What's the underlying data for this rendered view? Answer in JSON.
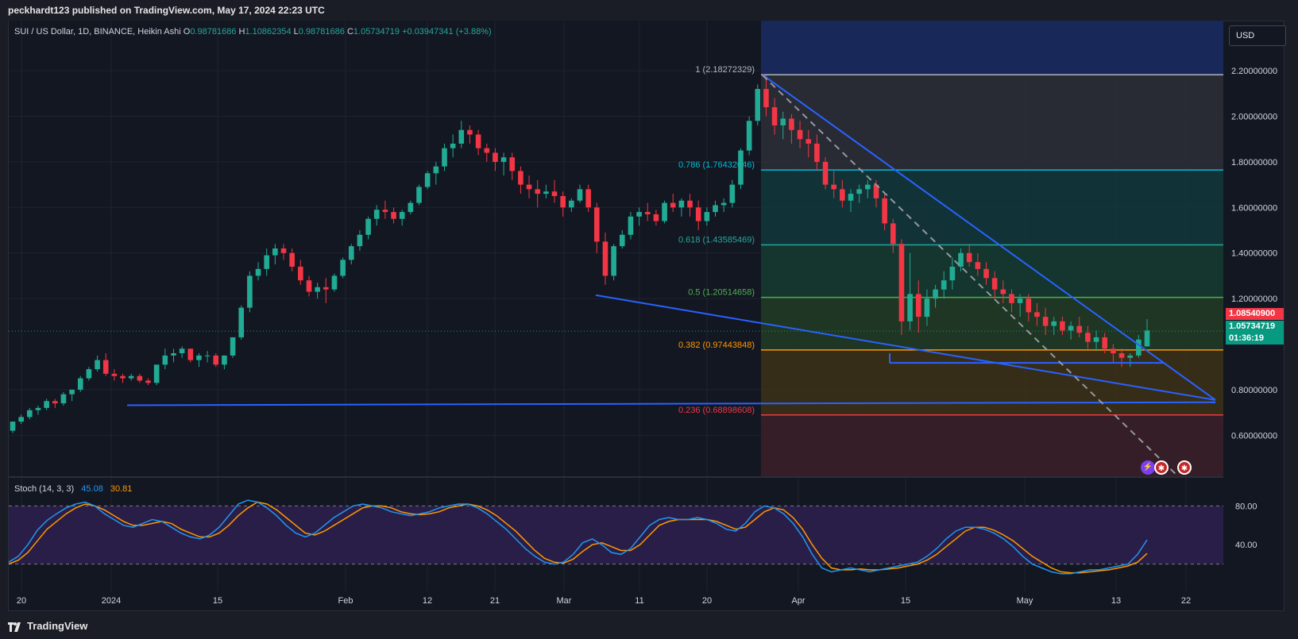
{
  "header": {
    "published_text": "peckhardt123 published on TradingView.com, May 17, 2024 22:23 UTC"
  },
  "legend": {
    "symbol": "SUI / US Dollar, 1D, BINANCE, Heikin Ashi",
    "o_label": "O",
    "o": "0.98781686",
    "h_label": "H",
    "h": "1.10862354",
    "l_label": "L",
    "l": "0.98781686",
    "c_label": "C",
    "c": "1.05734719",
    "change": "+0.03947341 (+3.88%)"
  },
  "currency_button": "USD",
  "price_tags": {
    "red": "1.08540900",
    "green": "1.05734719",
    "countdown": "01:36:19"
  },
  "stoch": {
    "label": "Stoch (14, 3, 3)",
    "k": "45.08",
    "d": "30.81"
  },
  "footer": {
    "brand": "TradingView"
  },
  "colors": {
    "up": "#22ab94",
    "down": "#f23645",
    "background": "#131722",
    "trendline": "#2962ff",
    "stoch_k": "#2196f3",
    "stoch_d": "#ff9800"
  },
  "chart_data": {
    "type": "candlestick",
    "candle_style": "Heikin Ashi",
    "x_ticks": [
      "20",
      "2024",
      "15",
      "Feb",
      "12",
      "21",
      "Mar",
      "11",
      "20",
      "Apr",
      "15",
      "May",
      "13",
      "22"
    ],
    "y_ticks": [
      "2.20000000",
      "2.00000000",
      "1.80000000",
      "1.60000000",
      "1.40000000",
      "1.20000000",
      "0.80000000",
      "0.60000000"
    ],
    "ylim": [
      0.42,
      2.42
    ],
    "fib_levels": [
      {
        "ratio": "1",
        "label": "1 (2.18272329)",
        "price": 2.18272329,
        "color": "#b2b5be"
      },
      {
        "ratio": "0.786",
        "label": "0.786 (1.76432046)",
        "price": 1.76432046,
        "color": "#00bcd4"
      },
      {
        "ratio": "0.618",
        "label": "0.618 (1.43585469)",
        "price": 1.43585469,
        "color": "#26a69a"
      },
      {
        "ratio": "0.5",
        "label": "0.5 (1.20514658)",
        "price": 1.20514658,
        "color": "#4caf50"
      },
      {
        "ratio": "0.382",
        "label": "0.382 (0.97443848)",
        "price": 0.97443848,
        "color": "#ff9800"
      },
      {
        "ratio": "0.236",
        "label": "0.236 (0.68898608)",
        "price": 0.68898608,
        "color": "#f23645"
      }
    ],
    "candles_ohlc": [
      [
        0.62,
        0.66,
        0.61,
        0.66
      ],
      [
        0.66,
        0.69,
        0.65,
        0.68
      ],
      [
        0.68,
        0.72,
        0.67,
        0.71
      ],
      [
        0.71,
        0.73,
        0.69,
        0.72
      ],
      [
        0.72,
        0.76,
        0.71,
        0.75
      ],
      [
        0.75,
        0.76,
        0.72,
        0.74
      ],
      [
        0.74,
        0.79,
        0.73,
        0.78
      ],
      [
        0.78,
        0.8,
        0.75,
        0.8
      ],
      [
        0.8,
        0.86,
        0.79,
        0.85
      ],
      [
        0.85,
        0.9,
        0.84,
        0.89
      ],
      [
        0.89,
        0.95,
        0.88,
        0.93
      ],
      [
        0.93,
        0.96,
        0.86,
        0.87
      ],
      [
        0.87,
        0.89,
        0.84,
        0.86
      ],
      [
        0.86,
        0.87,
        0.83,
        0.85
      ],
      [
        0.85,
        0.87,
        0.84,
        0.86
      ],
      [
        0.86,
        0.87,
        0.83,
        0.84
      ],
      [
        0.84,
        0.85,
        0.82,
        0.83
      ],
      [
        0.83,
        0.91,
        0.82,
        0.91
      ],
      [
        0.91,
        0.98,
        0.89,
        0.95
      ],
      [
        0.95,
        0.98,
        0.92,
        0.96
      ],
      [
        0.96,
        0.99,
        0.94,
        0.98
      ],
      [
        0.98,
        0.98,
        0.92,
        0.93
      ],
      [
        0.93,
        0.96,
        0.9,
        0.95
      ],
      [
        0.95,
        0.97,
        0.92,
        0.95
      ],
      [
        0.95,
        0.96,
        0.9,
        0.91
      ],
      [
        0.91,
        0.95,
        0.89,
        0.95
      ],
      [
        0.95,
        1.03,
        0.94,
        1.03
      ],
      [
        1.03,
        1.17,
        1.02,
        1.16
      ],
      [
        1.16,
        1.32,
        1.14,
        1.3
      ],
      [
        1.3,
        1.36,
        1.28,
        1.33
      ],
      [
        1.33,
        1.42,
        1.3,
        1.39
      ],
      [
        1.39,
        1.44,
        1.35,
        1.42
      ],
      [
        1.42,
        1.44,
        1.37,
        1.4
      ],
      [
        1.4,
        1.42,
        1.32,
        1.34
      ],
      [
        1.34,
        1.37,
        1.26,
        1.28
      ],
      [
        1.28,
        1.3,
        1.21,
        1.23
      ],
      [
        1.23,
        1.27,
        1.2,
        1.25
      ],
      [
        1.25,
        1.29,
        1.18,
        1.24
      ],
      [
        1.24,
        1.31,
        1.23,
        1.3
      ],
      [
        1.3,
        1.38,
        1.29,
        1.37
      ],
      [
        1.37,
        1.44,
        1.35,
        1.43
      ],
      [
        1.43,
        1.5,
        1.41,
        1.48
      ],
      [
        1.48,
        1.56,
        1.46,
        1.55
      ],
      [
        1.55,
        1.61,
        1.52,
        1.59
      ],
      [
        1.59,
        1.63,
        1.55,
        1.58
      ],
      [
        1.58,
        1.6,
        1.53,
        1.55
      ],
      [
        1.55,
        1.59,
        1.52,
        1.58
      ],
      [
        1.58,
        1.63,
        1.57,
        1.62
      ],
      [
        1.62,
        1.7,
        1.61,
        1.69
      ],
      [
        1.69,
        1.76,
        1.68,
        1.75
      ],
      [
        1.75,
        1.8,
        1.7,
        1.78
      ],
      [
        1.78,
        1.88,
        1.76,
        1.86
      ],
      [
        1.86,
        1.92,
        1.82,
        1.88
      ],
      [
        1.88,
        1.98,
        1.86,
        1.94
      ],
      [
        1.94,
        1.96,
        1.88,
        1.92
      ],
      [
        1.92,
        1.94,
        1.83,
        1.86
      ],
      [
        1.86,
        1.88,
        1.8,
        1.84
      ],
      [
        1.84,
        1.86,
        1.76,
        1.8
      ],
      [
        1.8,
        1.84,
        1.74,
        1.82
      ],
      [
        1.82,
        1.84,
        1.72,
        1.76
      ],
      [
        1.76,
        1.78,
        1.66,
        1.7
      ],
      [
        1.7,
        1.74,
        1.64,
        1.68
      ],
      [
        1.68,
        1.72,
        1.6,
        1.66
      ],
      [
        1.66,
        1.7,
        1.64,
        1.67
      ],
      [
        1.67,
        1.72,
        1.62,
        1.65
      ],
      [
        1.65,
        1.67,
        1.56,
        1.6
      ],
      [
        1.6,
        1.64,
        1.58,
        1.63
      ],
      [
        1.63,
        1.7,
        1.62,
        1.68
      ],
      [
        1.68,
        1.7,
        1.58,
        1.6
      ],
      [
        1.6,
        1.62,
        1.4,
        1.45
      ],
      [
        1.45,
        1.49,
        1.26,
        1.3
      ],
      [
        1.3,
        1.44,
        1.28,
        1.43
      ],
      [
        1.43,
        1.5,
        1.42,
        1.48
      ],
      [
        1.48,
        1.58,
        1.46,
        1.56
      ],
      [
        1.56,
        1.6,
        1.52,
        1.58
      ],
      [
        1.58,
        1.62,
        1.54,
        1.57
      ],
      [
        1.57,
        1.59,
        1.52,
        1.54
      ],
      [
        1.54,
        1.63,
        1.53,
        1.62
      ],
      [
        1.62,
        1.66,
        1.58,
        1.6
      ],
      [
        1.6,
        1.64,
        1.56,
        1.63
      ],
      [
        1.63,
        1.66,
        1.56,
        1.6
      ],
      [
        1.6,
        1.63,
        1.5,
        1.54
      ],
      [
        1.54,
        1.6,
        1.52,
        1.58
      ],
      [
        1.58,
        1.63,
        1.56,
        1.61
      ],
      [
        1.61,
        1.64,
        1.58,
        1.62
      ],
      [
        1.62,
        1.72,
        1.6,
        1.7
      ],
      [
        1.7,
        1.86,
        1.68,
        1.85
      ],
      [
        1.85,
        2.0,
        1.83,
        1.98
      ],
      [
        1.98,
        2.14,
        1.96,
        2.12
      ],
      [
        2.12,
        2.18,
        2.0,
        2.04
      ],
      [
        2.04,
        2.08,
        1.92,
        1.96
      ],
      [
        1.96,
        2.02,
        1.9,
        1.99
      ],
      [
        1.99,
        2.01,
        1.88,
        1.94
      ],
      [
        1.94,
        1.98,
        1.86,
        1.9
      ],
      [
        1.9,
        1.94,
        1.82,
        1.88
      ],
      [
        1.88,
        1.92,
        1.76,
        1.8
      ],
      [
        1.8,
        1.82,
        1.68,
        1.7
      ],
      [
        1.7,
        1.76,
        1.64,
        1.68
      ],
      [
        1.68,
        1.72,
        1.6,
        1.63
      ],
      [
        1.63,
        1.68,
        1.58,
        1.66
      ],
      [
        1.66,
        1.7,
        1.62,
        1.68
      ],
      [
        1.68,
        1.72,
        1.64,
        1.7
      ],
      [
        1.7,
        1.72,
        1.6,
        1.64
      ],
      [
        1.64,
        1.66,
        1.5,
        1.53
      ],
      [
        1.53,
        1.55,
        1.4,
        1.44
      ],
      [
        1.44,
        1.46,
        1.04,
        1.1
      ],
      [
        1.1,
        1.4,
        1.06,
        1.22
      ],
      [
        1.22,
        1.28,
        1.05,
        1.12
      ],
      [
        1.12,
        1.24,
        1.08,
        1.2
      ],
      [
        1.2,
        1.26,
        1.16,
        1.24
      ],
      [
        1.24,
        1.32,
        1.2,
        1.28
      ],
      [
        1.28,
        1.38,
        1.24,
        1.34
      ],
      [
        1.34,
        1.42,
        1.32,
        1.4
      ],
      [
        1.4,
        1.44,
        1.34,
        1.36
      ],
      [
        1.36,
        1.4,
        1.3,
        1.33
      ],
      [
        1.33,
        1.36,
        1.26,
        1.29
      ],
      [
        1.29,
        1.32,
        1.2,
        1.24
      ],
      [
        1.24,
        1.28,
        1.18,
        1.22
      ],
      [
        1.22,
        1.24,
        1.14,
        1.18
      ],
      [
        1.18,
        1.22,
        1.12,
        1.2
      ],
      [
        1.2,
        1.22,
        1.1,
        1.14
      ],
      [
        1.14,
        1.18,
        1.08,
        1.12
      ],
      [
        1.12,
        1.16,
        1.04,
        1.08
      ],
      [
        1.08,
        1.12,
        1.04,
        1.1
      ],
      [
        1.1,
        1.12,
        1.04,
        1.06
      ],
      [
        1.06,
        1.1,
        1.02,
        1.08
      ],
      [
        1.08,
        1.12,
        1.03,
        1.05
      ],
      [
        1.05,
        1.08,
        0.98,
        1.01
      ],
      [
        1.01,
        1.06,
        0.97,
        1.03
      ],
      [
        1.03,
        1.05,
        0.96,
        0.98
      ],
      [
        0.98,
        1.0,
        0.92,
        0.96
      ],
      [
        0.96,
        0.98,
        0.9,
        0.94
      ],
      [
        0.94,
        0.96,
        0.9,
        0.95
      ],
      [
        0.95,
        1.04,
        0.94,
        1.02
      ],
      [
        0.99,
        1.11,
        0.99,
        1.06
      ]
    ],
    "stoch_k": [
      22,
      28,
      40,
      55,
      65,
      72,
      78,
      82,
      84,
      80,
      72,
      66,
      60,
      58,
      62,
      66,
      64,
      58,
      52,
      48,
      46,
      50,
      58,
      70,
      82,
      86,
      84,
      78,
      70,
      60,
      52,
      48,
      52,
      60,
      68,
      74,
      80,
      82,
      80,
      78,
      74,
      72,
      70,
      72,
      74,
      78,
      80,
      82,
      82,
      78,
      72,
      64,
      56,
      46,
      36,
      28,
      22,
      20,
      22,
      30,
      42,
      46,
      40,
      32,
      30,
      36,
      48,
      60,
      66,
      68,
      66,
      66,
      68,
      66,
      62,
      56,
      54,
      62,
      74,
      80,
      78,
      72,
      62,
      48,
      30,
      16,
      12,
      14,
      16,
      14,
      12,
      14,
      16,
      18,
      20,
      22,
      28,
      36,
      46,
      54,
      58,
      58,
      56,
      52,
      46,
      38,
      28,
      20,
      16,
      12,
      10,
      10,
      12,
      14,
      14,
      16,
      18,
      20,
      30,
      45
    ],
    "stoch_d": [
      20,
      24,
      32,
      44,
      56,
      64,
      72,
      78,
      82,
      80,
      76,
      70,
      64,
      60,
      60,
      62,
      64,
      62,
      56,
      52,
      48,
      48,
      52,
      60,
      70,
      78,
      84,
      82,
      76,
      68,
      60,
      52,
      50,
      54,
      60,
      66,
      72,
      78,
      80,
      80,
      78,
      74,
      72,
      71,
      72,
      74,
      78,
      80,
      82,
      80,
      76,
      70,
      62,
      54,
      44,
      34,
      26,
      22,
      21,
      25,
      33,
      40,
      42,
      38,
      34,
      34,
      40,
      50,
      60,
      64,
      66,
      66,
      66,
      66,
      64,
      60,
      56,
      58,
      66,
      74,
      78,
      76,
      68,
      56,
      40,
      26,
      16,
      14,
      14,
      15,
      14,
      14,
      15,
      16,
      18,
      20,
      24,
      30,
      38,
      46,
      54,
      58,
      58,
      55,
      50,
      44,
      36,
      28,
      22,
      16,
      12,
      11,
      11,
      12,
      13,
      14,
      16,
      18,
      22,
      31
    ]
  }
}
